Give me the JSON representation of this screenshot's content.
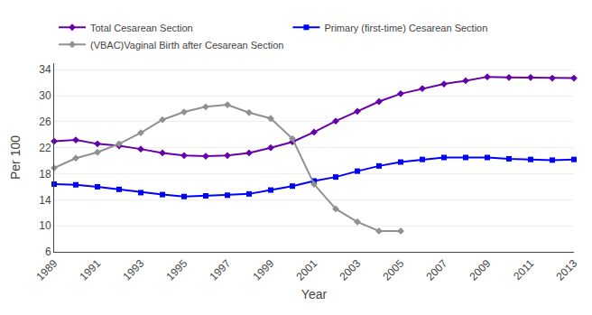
{
  "chart_data": {
    "type": "line",
    "x_label": "Year",
    "y_label": "Per 100",
    "x": [
      1989,
      1990,
      1991,
      1992,
      1993,
      1994,
      1995,
      1996,
      1997,
      1998,
      1999,
      2000,
      2001,
      2002,
      2003,
      2004,
      2005,
      2006,
      2007,
      2008,
      2009,
      2010,
      2011,
      2012,
      2013
    ],
    "series": [
      {
        "name": "Total Cesarean Section",
        "color": "#6600AA",
        "marker": "diamond",
        "line_style": "solid",
        "values": [
          23.0,
          23.2,
          22.6,
          22.3,
          21.8,
          21.2,
          20.8,
          20.7,
          20.8,
          21.2,
          22.0,
          22.9,
          24.4,
          26.1,
          27.6,
          29.1,
          30.3,
          31.1,
          31.8,
          32.3,
          32.9,
          32.8,
          32.8,
          32.7,
          32.7
        ]
      },
      {
        "name": "Primary (first-time) Cesarean Section",
        "color": "#0000FF",
        "marker": "square",
        "line_style": "solid",
        "values": [
          16.4,
          16.3,
          16.0,
          15.6,
          15.1,
          14.8,
          14.5,
          14.6,
          14.7,
          14.9,
          15.5,
          16.1,
          16.9,
          17.5,
          18.4,
          19.2,
          19.8,
          20.2,
          20.5,
          20.5,
          20.5,
          20.3,
          20.2,
          20.1,
          20.2
        ]
      },
      {
        "name": "(VBAC)Vaginal Birth after Cesarean Section",
        "color": "#909090",
        "marker": "diamond",
        "line_style": "solid",
        "values": [
          18.9,
          20.4,
          21.3,
          22.6,
          24.3,
          26.3,
          27.5,
          28.3,
          28.6,
          27.4,
          26.5,
          23.4,
          16.4,
          12.6,
          10.6,
          9.2,
          9.2,
          null,
          null,
          null,
          null,
          null,
          null,
          null,
          null
        ]
      }
    ],
    "xlim": [
      1989,
      2013
    ],
    "xticks": [
      1989,
      1991,
      1993,
      1995,
      1997,
      1999,
      2001,
      2003,
      2005,
      2007,
      2009,
      2011,
      2013
    ],
    "ylim": [
      6,
      35
    ],
    "yticks": [
      6,
      10,
      14,
      18,
      22,
      26,
      30,
      34
    ],
    "grid": "y",
    "legend": "top"
  }
}
